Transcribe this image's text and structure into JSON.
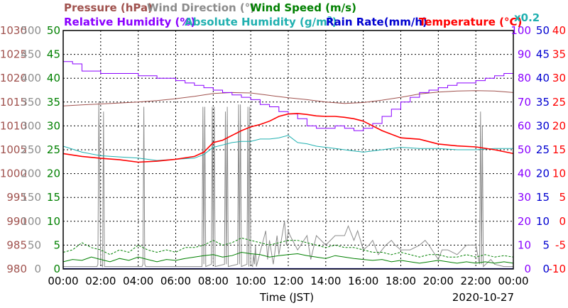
{
  "chart_data": {
    "type": "line",
    "xlabel": "Time (JST)",
    "date": "2020-10-27",
    "x_ticks": [
      "00:00",
      "02:00",
      "04:00",
      "06:00",
      "08:00",
      "10:00",
      "12:00",
      "14:00",
      "16:00",
      "18:00",
      "20:00",
      "22:00",
      "00:00"
    ],
    "grid": true,
    "titles": {
      "pressure": "Pressure (hPa)",
      "wind_dir": "Wind Direction (°)",
      "wind_speed": "Wind Speed (m/s)",
      "rh": "Relative Humidity (%)",
      "abs_hum_main": "Absolute Humidity (g/m",
      "abs_hum_sup": "3",
      "abs_hum_end": ")",
      "rain": "Rain Rate(mm/h)",
      "temp_main": "Temperature (",
      "temp_unit": "°C",
      "temp_end": ")",
      "scale": "x0.2"
    },
    "axes": {
      "pressure": {
        "ticks": [
          "1030",
          "1025",
          "1020",
          "1015",
          "1010",
          "1005",
          "1000",
          "995",
          "990",
          "985",
          "980"
        ],
        "range": [
          980,
          1030
        ],
        "color": "#a0524e"
      },
      "wind_dir": {
        "ticks": [
          "500",
          "450",
          "400",
          "350",
          "300",
          "250",
          "200",
          "150",
          "100",
          "50",
          "0"
        ],
        "range": [
          0,
          500
        ],
        "color": "#8c8c8c"
      },
      "wind_speed": {
        "ticks": [
          "50",
          "45",
          "40",
          "35",
          "30",
          "25",
          "20",
          "15",
          "10",
          "5",
          "0"
        ],
        "range": [
          0,
          50
        ],
        "color": "#008000"
      },
      "rh": {
        "ticks": [
          "100",
          "90",
          "80",
          "70",
          "60",
          "50",
          "40",
          "30",
          "20",
          "10",
          "0"
        ],
        "range": [
          0,
          100
        ],
        "color": "#8a00ff"
      },
      "rain": {
        "ticks": [
          "50",
          "45",
          "40",
          "35",
          "30",
          "25",
          "20",
          "15",
          "10",
          "5",
          "0"
        ],
        "range": [
          0,
          50
        ],
        "color": "#0000d0"
      },
      "temp": {
        "ticks": [
          "40",
          "35",
          "30",
          "25",
          "20",
          "15",
          "10",
          "5",
          "0",
          "-5",
          "-10"
        ],
        "range": [
          -10,
          40
        ],
        "color": "#ff0000"
      }
    },
    "series": [
      {
        "name": "Pressure (hPa)",
        "key": "pressure",
        "color": "#a0524e",
        "x": [
          0,
          1,
          2,
          3,
          4,
          5,
          6,
          7,
          8,
          9,
          10,
          11,
          12,
          13,
          14,
          15,
          16,
          17,
          18,
          19,
          20,
          21,
          22,
          23,
          24
        ],
        "y": [
          1014.2,
          1014.4,
          1014.6,
          1014.8,
          1015.0,
          1015.3,
          1015.7,
          1016.2,
          1016.8,
          1017.0,
          1016.9,
          1016.4,
          1015.9,
          1015.5,
          1015.0,
          1014.7,
          1014.9,
          1015.4,
          1016.0,
          1016.7,
          1017.1,
          1017.3,
          1017.4,
          1017.3,
          1017.0
        ]
      },
      {
        "name": "Relative Humidity (%)",
        "key": "rh",
        "color": "#8a00ff",
        "x": [
          0,
          0.5,
          1,
          2,
          3,
          4,
          5,
          6,
          6.5,
          7,
          7.5,
          8,
          8.5,
          9,
          9.5,
          10,
          10.5,
          11,
          11.5,
          12,
          12.5,
          13,
          13.5,
          14,
          14.5,
          15,
          15.5,
          16,
          16.5,
          17,
          17.5,
          18,
          18.5,
          19,
          19.5,
          20,
          20.5,
          21,
          21.5,
          22,
          22.5,
          23,
          23.5,
          24
        ],
        "y": [
          87,
          86,
          83,
          82,
          82,
          81,
          80,
          79,
          78,
          77,
          76,
          75,
          74,
          73,
          72,
          71,
          69,
          68,
          66,
          65,
          63,
          60,
          59,
          59,
          60,
          59,
          58,
          59,
          61,
          64,
          67,
          70,
          72,
          74,
          75,
          76,
          77,
          78,
          78,
          79,
          80,
          81,
          82,
          83
        ]
      },
      {
        "name": "Absolute Humidity (g/m3)",
        "key": "rh",
        "color": "#20b0b0",
        "x": [
          0,
          1,
          2,
          3,
          4,
          5,
          6,
          7,
          7.5,
          8,
          8.5,
          9,
          9.5,
          10,
          10.5,
          11,
          11.5,
          12,
          12.5,
          13,
          13.5,
          14,
          14.5,
          15,
          15.5,
          16,
          17,
          18,
          19,
          20,
          21,
          22,
          23,
          24
        ],
        "y": [
          51.5,
          49,
          47.5,
          47,
          46.5,
          45.5,
          46,
          46.5,
          48,
          51,
          52,
          53,
          53.5,
          53.5,
          54.5,
          54.5,
          55,
          56,
          53,
          52.5,
          51.5,
          51,
          50.5,
          50,
          49.5,
          49,
          50,
          51,
          50.5,
          50.5,
          50,
          50,
          50.5,
          50.5
        ]
      },
      {
        "name": "Temperature (°C)",
        "key": "temp",
        "color": "#ff0000",
        "x": [
          0,
          1,
          2,
          3,
          4,
          5,
          6,
          7,
          7.5,
          8,
          8.5,
          9,
          9.5,
          10,
          10.5,
          11,
          11.5,
          12,
          12.5,
          13,
          13.5,
          14,
          14.5,
          15,
          15.5,
          16,
          17,
          18,
          19,
          20,
          21,
          22,
          23,
          24
        ],
        "y": [
          14.2,
          13.6,
          13.2,
          12.9,
          12.4,
          12.6,
          13.0,
          13.6,
          14.5,
          16.5,
          17.0,
          18.0,
          19.0,
          19.8,
          20.3,
          21.0,
          22.0,
          22.5,
          22.6,
          22.4,
          22.1,
          22.0,
          22.0,
          21.8,
          21.5,
          21.0,
          19.0,
          17.5,
          17.2,
          16.2,
          15.8,
          15.6,
          15.0,
          14.2
        ]
      },
      {
        "name": "Wind Direction (°)",
        "key": "wind_dir",
        "color": "#8c8c8c",
        "x": [
          0,
          1.8,
          1.85,
          1.9,
          2.0,
          2.1,
          2.15,
          2.2,
          4.2,
          4.25,
          4.3,
          4.35,
          4.4,
          4.45,
          7.4,
          7.45,
          7.5,
          7.55,
          7.6,
          7.9,
          7.95,
          8.0,
          8.05,
          8.1,
          8.6,
          8.65,
          8.7,
          8.75,
          8.8,
          9.3,
          9.35,
          9.4,
          9.45,
          9.5,
          9.8,
          9.85,
          9.9,
          9.95,
          10.0,
          10.1,
          10.15,
          10.2,
          10.25,
          10.3,
          10.8,
          10.9,
          11.0,
          11.2,
          11.4,
          11.5,
          11.8,
          11.9,
          12.0,
          12.1,
          12.5,
          13.0,
          13.2,
          13.5,
          14.0,
          14.5,
          15.0,
          15.2,
          15.5,
          15.7,
          16.0,
          16.3,
          16.5,
          16.8,
          17.0,
          17.2,
          17.5,
          17.7,
          18.0,
          18.5,
          19.0,
          19.3,
          19.5,
          20.0,
          20.2,
          20.5,
          21.0,
          21.5,
          22.0,
          22.2,
          22.25,
          22.3,
          22.35,
          22.4,
          22.8,
          23.0,
          23.5,
          24
        ],
        "y": [
          5,
          5,
          10,
          350,
          10,
          5,
          330,
          5,
          5,
          10,
          340,
          10,
          5,
          5,
          5,
          340,
          10,
          340,
          5,
          10,
          340,
          10,
          340,
          5,
          10,
          330,
          10,
          340,
          5,
          10,
          345,
          10,
          345,
          5,
          10,
          340,
          5,
          340,
          10,
          5,
          30,
          10,
          50,
          5,
          80,
          20,
          60,
          10,
          70,
          30,
          100,
          50,
          80,
          70,
          40,
          70,
          20,
          70,
          50,
          70,
          70,
          90,
          60,
          80,
          40,
          50,
          60,
          30,
          40,
          50,
          60,
          50,
          40,
          40,
          50,
          60,
          50,
          20,
          40,
          40,
          30,
          50,
          50,
          10,
          330,
          10,
          300,
          5,
          20,
          10,
          5,
          5
        ]
      },
      {
        "name": "Wind Speed (m/s)",
        "key": "wind_speed",
        "color": "#008000",
        "x": [
          0,
          0.5,
          1,
          1.5,
          2,
          2.5,
          3,
          3.5,
          4,
          4.5,
          5,
          5.5,
          6,
          6.5,
          7,
          7.5,
          8,
          8.5,
          9,
          9.5,
          10,
          10.5,
          11,
          11.5,
          12,
          12.5,
          13,
          13.5,
          14,
          14.5,
          15,
          15.5,
          16,
          16.5,
          17,
          17.5,
          18,
          18.5,
          19,
          19.5,
          20,
          20.5,
          21,
          21.5,
          22,
          22.5,
          23,
          23.5,
          24
        ],
        "y": [
          1.5,
          2,
          1.8,
          2.5,
          2,
          1.5,
          2.2,
          1.8,
          2.5,
          2,
          1.5,
          2,
          1.8,
          2.2,
          2.5,
          2.8,
          3,
          2.5,
          2.8,
          3.5,
          3.2,
          3,
          2.5,
          2.8,
          3,
          3.2,
          2.8,
          2.5,
          2.2,
          2.8,
          2.5,
          2.2,
          2,
          1.8,
          2,
          1.5,
          1.8,
          1.5,
          1.2,
          1.5,
          1.8,
          1.5,
          1.2,
          1.5,
          1.2,
          1.5,
          1.2,
          1.5,
          1.2
        ]
      },
      {
        "name": "Wind Speed max",
        "key": "wind_speed",
        "color": "#008000",
        "dashed": true,
        "x": [
          0,
          0.5,
          1,
          1.5,
          2,
          2.5,
          3,
          3.5,
          4,
          4.5,
          5,
          5.5,
          6,
          6.5,
          7,
          7.5,
          8,
          8.5,
          9,
          9.5,
          10,
          10.5,
          11,
          11.5,
          12,
          12.5,
          13,
          13.5,
          14,
          14.5,
          15,
          15.5,
          16,
          16.5,
          17,
          17.5,
          18,
          18.5,
          19,
          19.5,
          20,
          20.5,
          21,
          21.5,
          22,
          22.5,
          23,
          23.5,
          24
        ],
        "y": [
          3.5,
          4,
          5.5,
          4.5,
          4,
          3,
          4,
          3.5,
          5,
          4,
          3.5,
          4,
          3.5,
          4.5,
          4.5,
          5,
          6,
          5,
          5.5,
          6.5,
          6,
          5.5,
          5,
          5.5,
          6,
          6,
          5.5,
          5,
          4.5,
          5,
          4.5,
          4.5,
          4,
          3.5,
          3.5,
          3,
          3.5,
          3,
          2.5,
          3,
          3,
          2.5,
          2.5,
          3,
          2.5,
          3,
          2.5,
          2.8,
          2.5
        ]
      }
    ]
  }
}
